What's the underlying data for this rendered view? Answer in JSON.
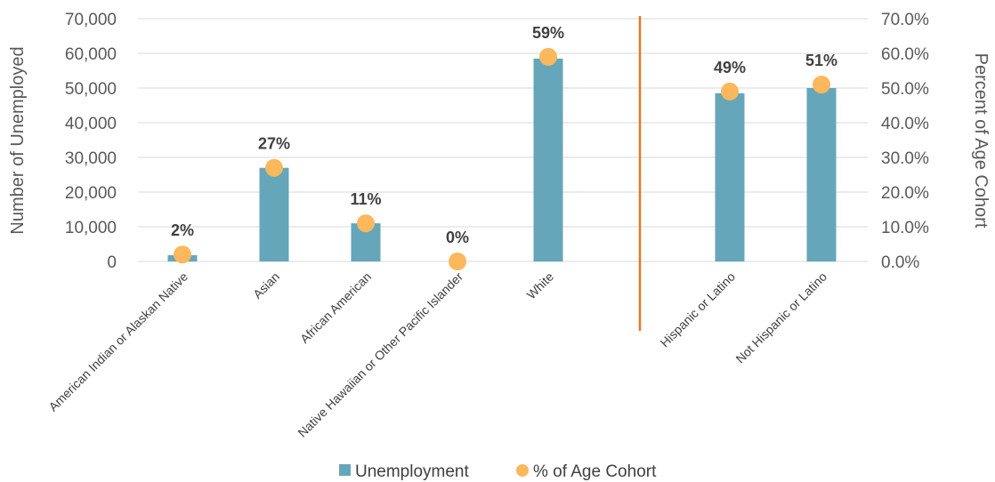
{
  "chart_data": {
    "type": "bar",
    "categories": [
      "American Indian or Alaskan Native",
      "Asian",
      "African American",
      "Native Hawaiian or Other Pacific Islander",
      "White",
      "Hispanic or Latino",
      "Not Hispanic or Latino"
    ],
    "series": [
      {
        "name": "Unemployment",
        "type": "bar",
        "axis": "left",
        "color": "#66a6ba",
        "values": [
          1800,
          27000,
          11000,
          0,
          58500,
          48500,
          50000
        ]
      },
      {
        "name": "% of Age Cohort",
        "type": "scatter",
        "axis": "right",
        "color": "#fbb85c",
        "values": [
          2,
          27,
          11,
          0,
          59,
          49,
          51
        ],
        "labels": [
          "2%",
          "27%",
          "11%",
          "0%",
          "59%",
          "49%",
          "51%"
        ]
      }
    ],
    "ylabel": "Number of Unemployed",
    "y2label": "Percent of Age Cohort",
    "ylim": [
      0,
      70000
    ],
    "y2lim": [
      0,
      70
    ],
    "yticks": [
      "0",
      "10,000",
      "20,000",
      "30,000",
      "40,000",
      "50,000",
      "60,000",
      "70,000"
    ],
    "y2ticks": [
      "0.0%",
      "10.0%",
      "20.0%",
      "30.0%",
      "40.0%",
      "50.0%",
      "60.0%",
      "70.0%"
    ],
    "separator_after_index": 4,
    "separator_color": "#e87722",
    "grid": true,
    "legend_position": "bottom"
  }
}
